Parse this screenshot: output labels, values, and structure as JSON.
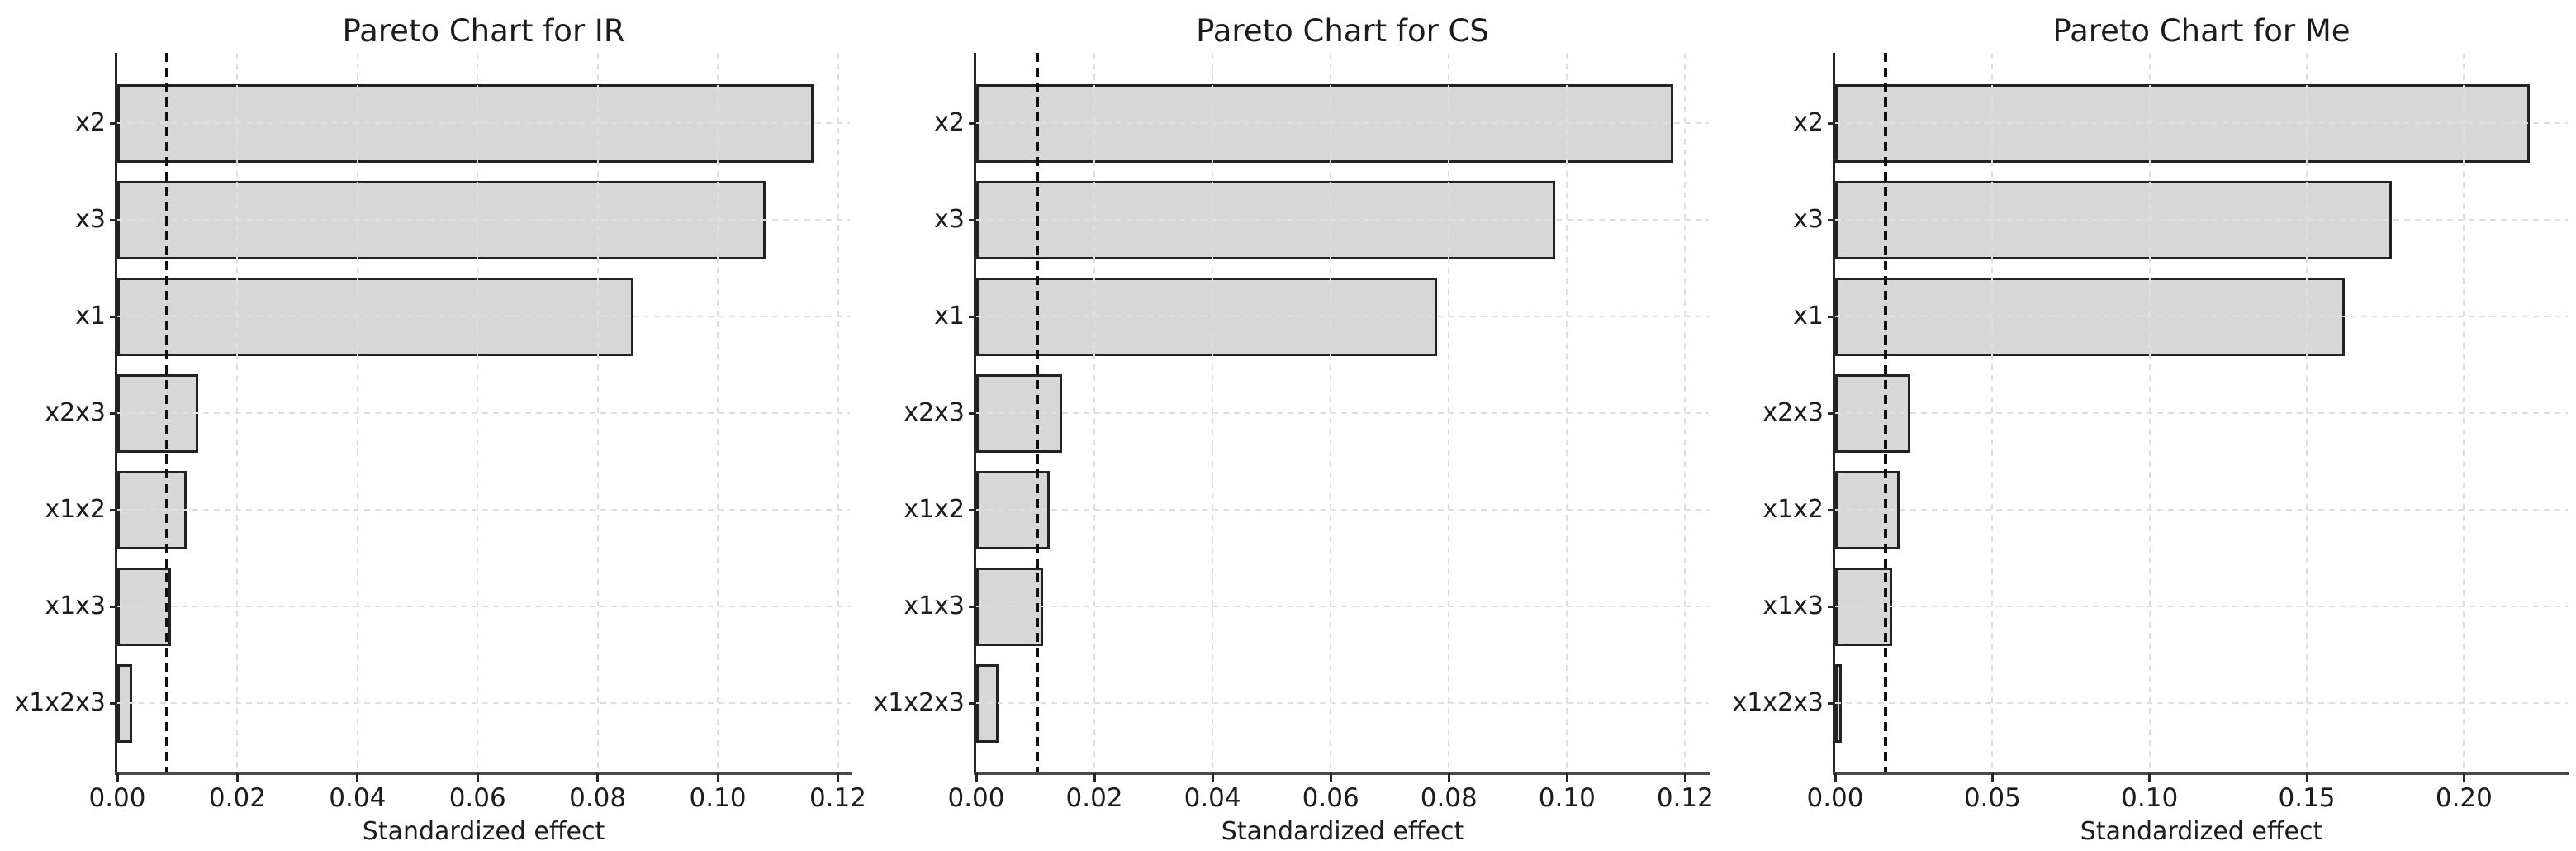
{
  "figure": {
    "background": "#ffffff",
    "style": {
      "bar_fill": "#d7d7d7",
      "bar_edge": "#222222",
      "grid_color": "#dedede",
      "threshold_color": "#111111",
      "y_spine_color": "#262626",
      "x_spine_color": "#4a4a4a",
      "tick_color": "#262626",
      "text_color": "#1c1c1c"
    }
  },
  "chart_data": [
    {
      "type": "bar",
      "orientation": "horizontal",
      "title": "Pareto Chart for IR",
      "xlabel": "Standardized effect",
      "categories": [
        "x2",
        "x3",
        "x1",
        "x2x3",
        "x1x2",
        "x1x3",
        "x1x2x3"
      ],
      "values": [
        0.116,
        0.108,
        0.086,
        0.0135,
        0.0115,
        0.009,
        0.0025
      ],
      "threshold_line": 0.0083,
      "xticks": [
        "0.00",
        "0.02",
        "0.04",
        "0.06",
        "0.08",
        "0.10",
        "0.12"
      ],
      "xtick_values": [
        0,
        0.02,
        0.04,
        0.06,
        0.08,
        0.1,
        0.12
      ],
      "xlim": [
        0,
        0.122
      ],
      "grid": true,
      "legend": null
    },
    {
      "type": "bar",
      "orientation": "horizontal",
      "title": "Pareto Chart for CS",
      "xlabel": "Standardized effect",
      "categories": [
        "x2",
        "x3",
        "x1",
        "x2x3",
        "x1x2",
        "x1x3",
        "x1x2x3"
      ],
      "values": [
        0.118,
        0.098,
        0.078,
        0.0145,
        0.0125,
        0.0113,
        0.0037
      ],
      "threshold_line": 0.0104,
      "xticks": [
        "0.00",
        "0.02",
        "0.04",
        "0.06",
        "0.08",
        "0.10",
        "0.12"
      ],
      "xtick_values": [
        0,
        0.02,
        0.04,
        0.06,
        0.08,
        0.1,
        0.12
      ],
      "xlim": [
        0,
        0.124
      ],
      "grid": true,
      "legend": null
    },
    {
      "type": "bar",
      "orientation": "horizontal",
      "title": "Pareto Chart for Me",
      "xlabel": "Standardized effect",
      "categories": [
        "x2",
        "x3",
        "x1",
        "x2x3",
        "x1x2",
        "x1x3",
        "x1x2x3"
      ],
      "values": [
        0.221,
        0.177,
        0.162,
        0.024,
        0.0205,
        0.018,
        0.002
      ],
      "threshold_line": 0.016,
      "xticks": [
        "0.00",
        "0.05",
        "0.10",
        "0.15",
        "0.20"
      ],
      "xtick_values": [
        0,
        0.05,
        0.1,
        0.15,
        0.2
      ],
      "xlim": [
        0,
        0.233
      ],
      "grid": true,
      "legend": null
    }
  ]
}
